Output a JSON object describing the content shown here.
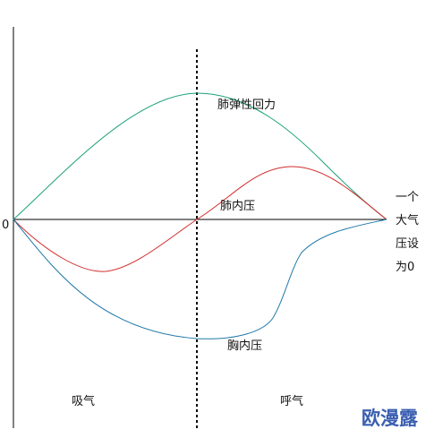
{
  "diagram": {
    "zero_label": "0",
    "curves": [
      {
        "id": "lung-recoil",
        "label": "肺弹性回力",
        "color": "#1aa07a"
      },
      {
        "id": "alveolar-pressure",
        "label": "肺内压",
        "color": "#d42c2c"
      },
      {
        "id": "pleural-pressure",
        "label": "胸内压",
        "color": "#1f78a8"
      }
    ],
    "phase_labels": {
      "inspiration": "吸气",
      "expiration": "呼气"
    },
    "atmosphere_note": [
      "一个",
      "大气",
      "压设",
      "为0"
    ]
  },
  "watermark": "欧漫露",
  "colors": {
    "axis": "#000000",
    "divider": "#000000",
    "watermark": "#3b5fb0"
  }
}
